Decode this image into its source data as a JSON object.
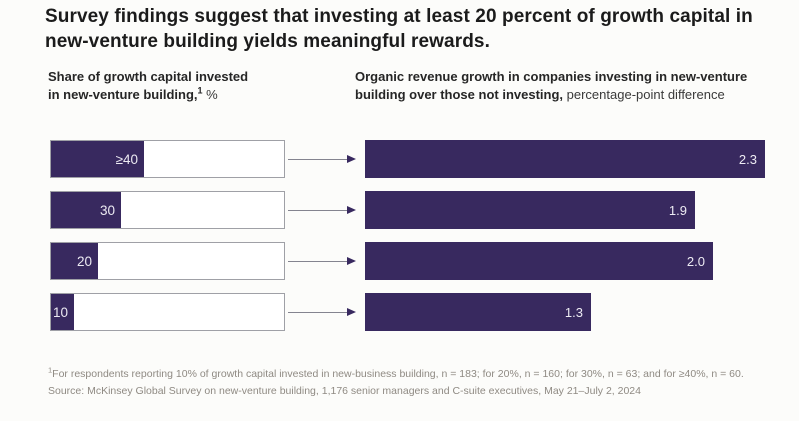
{
  "title": "Survey findings suggest that investing at least 20 percent of growth capital in new-venture building yields meaningful rewards.",
  "left_panel": {
    "line1": "Share of growth capital invested",
    "line2": "in new-venture building,",
    "sup": "1",
    "unit": "%"
  },
  "right_panel": {
    "bold": "Organic revenue growth in companies investing in new-venture building over those not investing,",
    "normal": "percentage-point difference"
  },
  "chart_data": {
    "type": "bar",
    "orientation": "horizontal",
    "grid": false,
    "value_label_position": "inside-end",
    "categories": [
      "≥40",
      "30",
      "20",
      "10"
    ],
    "series": [
      {
        "name": "Share of growth capital invested in new-venture building, %",
        "values": [
          40,
          30,
          20,
          10
        ],
        "value_labels": [
          "≥40",
          "30",
          "20",
          "10"
        ],
        "axis_max": 100,
        "style": "partial-fill-with-outline-track"
      },
      {
        "name": "Organic revenue growth in companies investing in new-venture building over those not investing, percentage-point difference",
        "values": [
          2.3,
          1.9,
          2.0,
          1.3
        ],
        "value_labels": [
          "2.3",
          "1.9",
          "2.0",
          "1.3"
        ],
        "axis_max": 2.3,
        "style": "solid-fill"
      }
    ]
  },
  "footnotes": {
    "note_sup": "1",
    "note": "For respondents reporting 10% of growth capital invested in new-business building, n = 183; for 20%, n = 160; for 30%, n = 63; and for ≥40%, n = 60.",
    "source": "Source: McKinsey Global Survey on new-venture building, 1,176 senior managers and C-suite executives, May 21–July 2, 2024"
  },
  "colors": {
    "purple": "#38295f",
    "bar_outline": "#9fa0a6",
    "arrow_line": "#84848f",
    "title_text": "#1b1b1b",
    "footnote_text": "#8f8a83",
    "background": "#fcfcfa"
  }
}
